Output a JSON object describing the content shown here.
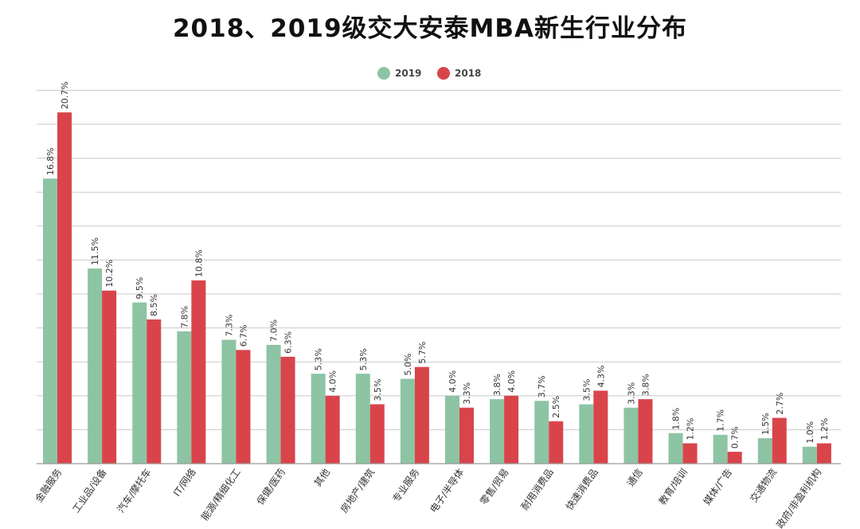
{
  "chart_data": {
    "type": "bar",
    "title": "2018、2019级交大安泰MBA新生行业分布",
    "xlabel": "",
    "ylabel": "",
    "ylim": [
      0,
      22
    ],
    "grid": true,
    "legend_position": "top-center",
    "categories": [
      "金融服务",
      "工业品/设备",
      "汽车/摩托车",
      "IT/网络",
      "能源/精细化工",
      "保健/医药",
      "其他",
      "房地产/建筑",
      "专业服务",
      "电子/半导体",
      "零售/贸易",
      "耐用消费品",
      "快速消费品",
      "通信",
      "教育/培训",
      "媒体/广告",
      "交通物流",
      "政府/非盈利机构"
    ],
    "series": [
      {
        "name": "2019",
        "color": "#8dc4a3",
        "values": [
          16.8,
          11.5,
          9.5,
          7.8,
          7.3,
          7.0,
          5.3,
          5.3,
          5.0,
          4.0,
          3.8,
          3.7,
          3.5,
          3.3,
          1.8,
          1.7,
          1.5,
          1.0
        ],
        "labels": [
          "16.8%",
          "11.5%",
          "9.5%",
          "7.8%",
          "7.3%",
          "7.0%",
          "5.3%",
          "5.3%",
          "5.0%",
          "4.0%",
          "3.8%",
          "3.7%",
          "3.5%",
          "3.3%",
          "1.8%",
          "1.7%",
          "1.5%",
          "1.0%"
        ]
      },
      {
        "name": "2018",
        "color": "#d9444b",
        "values": [
          20.7,
          10.2,
          8.5,
          10.8,
          6.7,
          6.3,
          4.0,
          3.5,
          5.7,
          3.3,
          4.0,
          2.5,
          4.3,
          3.8,
          1.2,
          0.7,
          2.7,
          1.2
        ],
        "labels": [
          "20.7%",
          "10.2%",
          "8.5%",
          "10.8%",
          "6.7%",
          "6.3%",
          "4.0%",
          "3.5%",
          "5.7%",
          "3.3%",
          "4.0%",
          "2.5%",
          "4.3%",
          "3.8%",
          "1.2%",
          "0.7%",
          "2.7%",
          "1.2%"
        ]
      }
    ]
  }
}
